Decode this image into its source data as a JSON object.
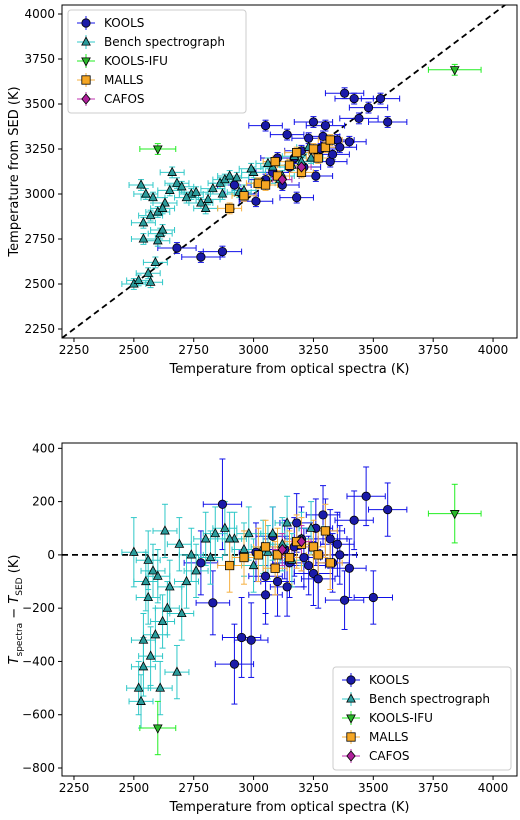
{
  "chart_data": [
    {
      "type": "scatter",
      "title": "",
      "xlabel": "Temperature from optical spectra (K)",
      "ylabel": "Temperature from SED (K)",
      "xlim": [
        2200,
        4100
      ],
      "ylim": [
        2200,
        4050
      ],
      "xticks": [
        2250,
        2500,
        2750,
        3000,
        3250,
        3500,
        3750,
        4000
      ],
      "yticks": [
        2250,
        2500,
        2750,
        3000,
        3250,
        3500,
        3750,
        4000
      ],
      "legend_position": "upper-left",
      "reference_line": {
        "style": "dashed",
        "label": "",
        "x": [
          2200,
          4100
        ],
        "y": [
          2200,
          4100
        ]
      },
      "series": [
        {
          "name": "KOOLS",
          "marker": "circle",
          "color": "#1a1aa8",
          "errcolor": "#1010e8",
          "x": [
            2680,
            2780,
            2870,
            2950,
            3050,
            3100,
            3150,
            3200,
            3250,
            3300,
            3350,
            3380,
            3420,
            3440,
            3480,
            3530,
            3560,
            3120,
            3180,
            3230,
            3280,
            3320,
            3080,
            3010,
            2920,
            3140,
            3260,
            3360,
            3400,
            3050,
            3170,
            3210,
            3290,
            3330
          ],
          "y": [
            2700,
            2650,
            2680,
            3000,
            3080,
            3200,
            3150,
            3240,
            3400,
            3380,
            3300,
            3560,
            3530,
            3420,
            3480,
            3530,
            3400,
            3050,
            2980,
            3310,
            3250,
            3180,
            3120,
            2960,
            3050,
            3330,
            3100,
            3260,
            3290,
            3380,
            3200,
            3150,
            3320,
            3220
          ],
          "xerr": [
            80,
            80,
            80,
            70,
            70,
            70,
            70,
            70,
            80,
            80,
            70,
            80,
            80,
            80,
            80,
            80,
            80,
            70,
            70,
            70,
            70,
            70,
            70,
            70,
            70,
            70,
            70,
            70,
            70,
            70,
            70,
            70,
            70,
            70
          ],
          "yerr": [
            30,
            30,
            30,
            30,
            30,
            30,
            30,
            30,
            30,
            30,
            30,
            30,
            30,
            30,
            30,
            30,
            30,
            30,
            30,
            30,
            30,
            30,
            30,
            30,
            30,
            30,
            30,
            30,
            30,
            30,
            30,
            30,
            30,
            30
          ]
        },
        {
          "name": "Bench spectrograph",
          "marker": "triangle",
          "color": "#2a9c9c",
          "errcolor": "#30c8c8",
          "x": [
            2500,
            2520,
            2540,
            2530,
            2560,
            2570,
            2590,
            2600,
            2610,
            2620,
            2550,
            2580,
            2600,
            2630,
            2660,
            2680,
            2700,
            2740,
            2760,
            2780,
            2800,
            2830,
            2860,
            2880,
            2900,
            2940,
            2960,
            3000,
            3040,
            3080,
            3120,
            3160,
            3200,
            3240,
            2540,
            2570,
            2620,
            2650,
            2720,
            2810,
            2870,
            2930,
            2990,
            3060,
            3110,
            3170,
            3230
          ],
          "y": [
            2500,
            2520,
            2750,
            3050,
            2560,
            2510,
            2620,
            2740,
            2780,
            2800,
            3000,
            2980,
            2900,
            2950,
            3120,
            3060,
            3040,
            3000,
            3010,
            2950,
            2920,
            3030,
            3060,
            3080,
            3100,
            3010,
            3020,
            3120,
            3060,
            3150,
            3100,
            3160,
            3180,
            3200,
            2840,
            2880,
            2920,
            3020,
            2980,
            2970,
            3000,
            3090,
            3140,
            3170,
            3080,
            3210,
            3260
          ],
          "xerr": [
            50,
            50,
            50,
            50,
            50,
            50,
            50,
            50,
            50,
            50,
            50,
            50,
            50,
            50,
            50,
            50,
            50,
            50,
            50,
            50,
            50,
            50,
            50,
            50,
            50,
            50,
            50,
            50,
            50,
            50,
            50,
            50,
            50,
            50,
            50,
            50,
            50,
            50,
            50,
            50,
            50,
            50,
            50,
            50,
            50,
            50,
            50
          ],
          "yerr": [
            30,
            30,
            30,
            30,
            30,
            30,
            30,
            30,
            30,
            30,
            30,
            30,
            30,
            30,
            30,
            30,
            30,
            30,
            30,
            30,
            30,
            30,
            30,
            30,
            30,
            30,
            30,
            30,
            30,
            30,
            30,
            30,
            30,
            30,
            30,
            30,
            30,
            30,
            30,
            30,
            30,
            30,
            30,
            30,
            30,
            30,
            30
          ]
        },
        {
          "name": "KOOLS-IFU",
          "marker": "triangle-down",
          "color": "#2ab82a",
          "errcolor": "#22ee22",
          "x": [
            2600,
            3840
          ],
          "y": [
            3250,
            3690
          ],
          "xerr": [
            75,
            110
          ],
          "yerr": [
            30,
            30
          ]
        },
        {
          "name": "MALLS",
          "marker": "square",
          "color": "#f5a623",
          "errcolor": "#f5b040",
          "x": [
            2900,
            2960,
            3020,
            3050,
            3100,
            3150,
            3200,
            3250,
            3300,
            3320,
            3270,
            3180,
            3090
          ],
          "y": [
            2920,
            2990,
            3060,
            3050,
            3100,
            3160,
            3120,
            3250,
            3260,
            3300,
            3200,
            3230,
            3180
          ],
          "xerr": [
            50,
            50,
            50,
            50,
            50,
            50,
            50,
            50,
            50,
            50,
            50,
            50,
            50
          ],
          "yerr": [
            30,
            30,
            30,
            30,
            30,
            30,
            30,
            30,
            30,
            30,
            30,
            30,
            30
          ]
        },
        {
          "name": "CAFOS",
          "marker": "diamond",
          "color": "#b0209b",
          "errcolor": "#c030b0",
          "x": [
            3120,
            3200
          ],
          "y": [
            3080,
            3150
          ],
          "xerr": [
            40,
            40
          ],
          "yerr": [
            25,
            25
          ]
        }
      ]
    },
    {
      "type": "scatter",
      "title": "",
      "xlabel": "Temperature from optical spectra (K)",
      "ylabel": "T_spectra − T_SED (K)",
      "ylabel_main": "T",
      "ylabel_sub1": "spectra",
      "ylabel_mid": " − T",
      "ylabel_sub2": "SED",
      "ylabel_unit": " (K)",
      "xlim": [
        2200,
        4100
      ],
      "ylim": [
        -830,
        420
      ],
      "xticks": [
        2250,
        2500,
        2750,
        3000,
        3250,
        3500,
        3750,
        4000
      ],
      "yticks": [
        -800,
        -600,
        -400,
        -200,
        0,
        200,
        400
      ],
      "legend_position": "lower-right",
      "reference_line": {
        "style": "dashed",
        "label": "",
        "x": [
          2200,
          4100
        ],
        "y": [
          0,
          0
        ]
      },
      "series": [
        {
          "name": "KOOLS",
          "marker": "circle",
          "color": "#1a1aa8",
          "errcolor": "#1010e8",
          "x": [
            2870,
            2920,
            2950,
            2990,
            3050,
            3100,
            3150,
            3200,
            3250,
            3300,
            3350,
            3380,
            3420,
            3470,
            3500,
            3560,
            3130,
            3180,
            3230,
            3270,
            3320,
            3080,
            3010,
            3140,
            3260,
            3360,
            3400,
            3050,
            3170,
            3210,
            3290,
            3330,
            2780,
            2830
          ],
          "y": [
            190,
            -410,
            -310,
            -320,
            -80,
            -100,
            -30,
            60,
            -70,
            90,
            40,
            -170,
            130,
            220,
            -160,
            170,
            20,
            120,
            -40,
            -90,
            60,
            70,
            10,
            -120,
            100,
            0,
            -50,
            -150,
            30,
            -10,
            150,
            -30,
            -30,
            -180
          ],
          "xerr": [
            80,
            80,
            80,
            70,
            70,
            70,
            70,
            70,
            80,
            80,
            70,
            80,
            80,
            80,
            80,
            80,
            70,
            70,
            70,
            70,
            70,
            70,
            70,
            70,
            70,
            70,
            70,
            70,
            70,
            70,
            70,
            70,
            70,
            70
          ],
          "yerr": [
            170,
            150,
            150,
            140,
            140,
            130,
            130,
            120,
            120,
            120,
            120,
            110,
            110,
            110,
            100,
            100,
            110,
            110,
            110,
            110,
            110,
            110,
            110,
            110,
            110,
            110,
            110,
            110,
            110,
            110,
            110,
            110,
            120,
            120
          ]
        },
        {
          "name": "Bench spectrograph",
          "marker": "triangle",
          "color": "#2a9c9c",
          "errcolor": "#30c8c8",
          "x": [
            2500,
            2520,
            2530,
            2540,
            2550,
            2560,
            2570,
            2590,
            2600,
            2610,
            2620,
            2630,
            2650,
            2680,
            2700,
            2720,
            2760,
            2800,
            2840,
            2880,
            2920,
            2960,
            3000,
            3040,
            3080,
            3120,
            3160,
            3200,
            3240,
            2540,
            2560,
            2580,
            2640,
            2690,
            2740,
            2820,
            2900,
            2980,
            3060,
            3140
          ],
          "y": [
            10,
            -500,
            -550,
            -420,
            -100,
            -20,
            -380,
            -300,
            -80,
            -500,
            -250,
            90,
            -120,
            -440,
            -220,
            -100,
            -60,
            60,
            80,
            100,
            60,
            20,
            -40,
            30,
            80,
            40,
            -20,
            60,
            100,
            -320,
            -160,
            -60,
            -200,
            40,
            0,
            -10,
            60,
            80,
            10,
            120
          ],
          "xerr": [
            50,
            50,
            50,
            50,
            50,
            50,
            50,
            50,
            50,
            50,
            50,
            50,
            50,
            50,
            50,
            50,
            50,
            50,
            50,
            50,
            50,
            50,
            50,
            50,
            50,
            50,
            50,
            50,
            50,
            50,
            50,
            50,
            50,
            50,
            50,
            50,
            50,
            50,
            50,
            50
          ],
          "yerr": [
            130,
            100,
            100,
            110,
            110,
            110,
            110,
            100,
            100,
            100,
            100,
            100,
            100,
            100,
            100,
            100,
            100,
            100,
            100,
            100,
            100,
            100,
            100,
            100,
            100,
            100,
            100,
            100,
            100,
            100,
            100,
            100,
            100,
            100,
            100,
            100,
            100,
            100,
            100,
            100
          ]
        },
        {
          "name": "KOOLS-IFU",
          "marker": "triangle-down",
          "color": "#2ab82a",
          "errcolor": "#22ee22",
          "x": [
            2600,
            3840
          ],
          "y": [
            -650,
            155
          ],
          "xerr": [
            75,
            110
          ],
          "yerr": [
            100,
            110
          ]
        },
        {
          "name": "MALLS",
          "marker": "square",
          "color": "#f5a623",
          "errcolor": "#f5b040",
          "x": [
            2900,
            2960,
            3020,
            3050,
            3100,
            3150,
            3200,
            3250,
            3300,
            3320,
            3270,
            3180,
            3090
          ],
          "y": [
            -40,
            -10,
            0,
            30,
            0,
            -10,
            40,
            30,
            90,
            -30,
            0,
            50,
            -50
          ],
          "xerr": [
            50,
            50,
            50,
            50,
            50,
            50,
            50,
            50,
            50,
            50,
            50,
            50,
            50
          ],
          "yerr": [
            100,
            100,
            100,
            100,
            100,
            100,
            100,
            100,
            100,
            100,
            100,
            100,
            100
          ]
        },
        {
          "name": "CAFOS",
          "marker": "diamond",
          "color": "#b0209b",
          "errcolor": "#c030b0",
          "x": [
            3120,
            3200
          ],
          "y": [
            20,
            50
          ],
          "xerr": [
            40,
            40
          ],
          "yerr": [
            60,
            60
          ]
        }
      ]
    }
  ]
}
